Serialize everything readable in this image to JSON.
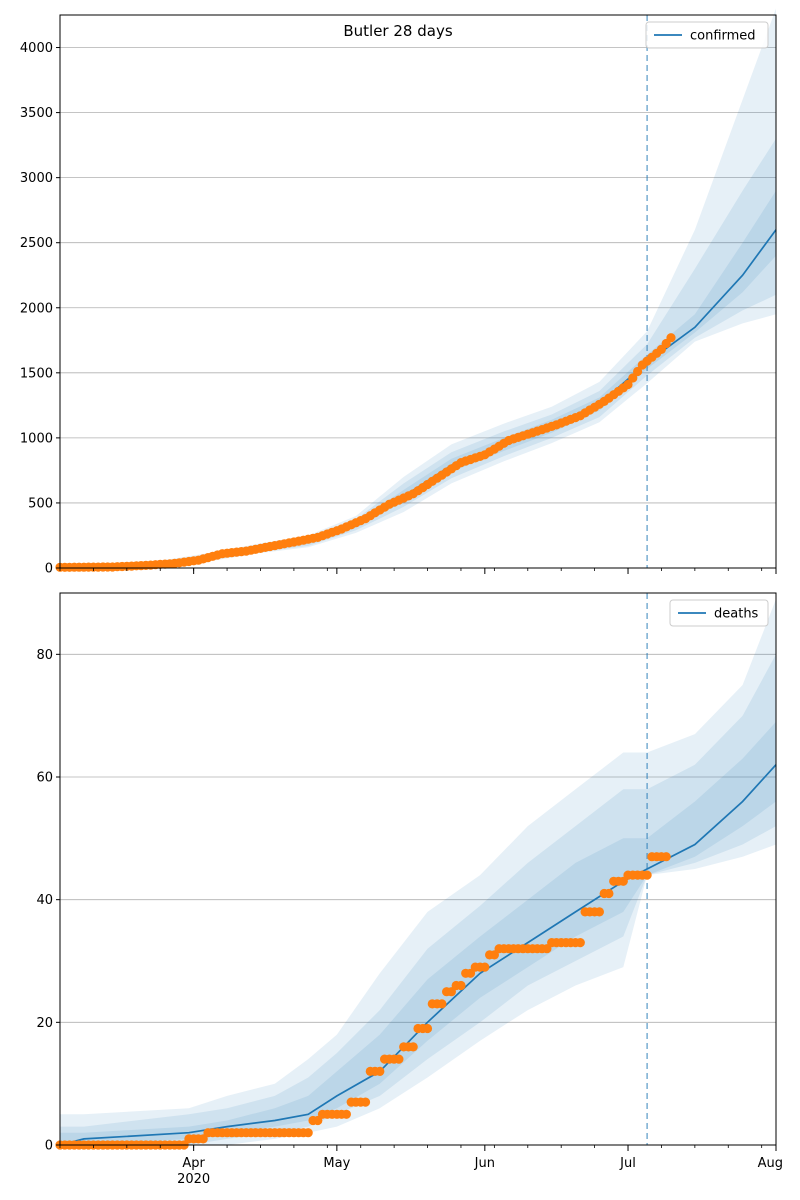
{
  "chart_data": [
    {
      "type": "line",
      "title": "Butler 28 days",
      "xlabel": "",
      "ylabel": "",
      "ylim": [
        0,
        4250
      ],
      "xlim": [
        "2020-03-04",
        "2020-08-01"
      ],
      "yticks": [
        0,
        500,
        1000,
        1500,
        2000,
        2500,
        3000,
        3500,
        4000
      ],
      "grid": "horizontal",
      "legend_position": "top-right",
      "legend": [
        "confirmed"
      ],
      "forecast_start": "2020-07-05",
      "series": [
        {
          "name": "confirmed",
          "kind": "model-median",
          "color": "#1f77b4",
          "x": [
            "2020-03-04",
            "2020-03-15",
            "2020-03-25",
            "2020-04-05",
            "2020-04-15",
            "2020-04-25",
            "2020-05-05",
            "2020-05-15",
            "2020-05-25",
            "2020-06-05",
            "2020-06-15",
            "2020-06-25",
            "2020-07-05",
            "2020-07-15",
            "2020-07-25",
            "2020-08-01"
          ],
          "y": [
            5,
            10,
            30,
            85,
            150,
            200,
            330,
            550,
            790,
            950,
            1090,
            1260,
            1580,
            1850,
            2250,
            2600
          ],
          "bands": [
            {
              "lower": [
                0,
                0,
                10,
                55,
                115,
                160,
                270,
                430,
                650,
                820,
                960,
                1120,
                1420,
                1740,
                1880,
                1950
              ],
              "upper": [
                20,
                25,
                55,
                120,
                190,
                250,
                400,
                700,
                950,
                1110,
                1240,
                1430,
                1820,
                2600,
                3600,
                4300
              ]
            },
            {
              "lower": [
                0,
                2,
                15,
                65,
                125,
                170,
                290,
                470,
                690,
                860,
                1000,
                1160,
                1480,
                1770,
                1980,
                2100
              ],
              "upper": [
                15,
                20,
                45,
                105,
                175,
                235,
                375,
                650,
                890,
                1050,
                1180,
                1360,
                1720,
                2300,
                2900,
                3300
              ]
            },
            {
              "lower": [
                2,
                5,
                22,
                75,
                138,
                185,
                310,
                510,
                740,
                900,
                1040,
                1210,
                1530,
                1810,
                2120,
                2400
              ],
              "upper": [
                10,
                15,
                38,
                95,
                162,
                215,
                350,
                600,
                840,
                1000,
                1140,
                1310,
                1640,
                1950,
                2500,
                2900
              ]
            }
          ]
        },
        {
          "name": "",
          "kind": "observed",
          "color": "#ff7f0e",
          "x": [
            "2020-03-04",
            "2020-03-15",
            "2020-03-22",
            "2020-03-28",
            "2020-04-02",
            "2020-04-07",
            "2020-04-12",
            "2020-04-17",
            "2020-04-22",
            "2020-04-27",
            "2020-05-02",
            "2020-05-07",
            "2020-05-12",
            "2020-05-17",
            "2020-05-22",
            "2020-05-27",
            "2020-06-01",
            "2020-06-06",
            "2020-06-11",
            "2020-06-16",
            "2020-06-21",
            "2020-06-26",
            "2020-07-01",
            "2020-07-04",
            "2020-07-08",
            "2020-07-10"
          ],
          "y": [
            5,
            8,
            20,
            35,
            60,
            110,
            130,
            165,
            200,
            235,
            300,
            380,
            490,
            570,
            690,
            810,
            870,
            980,
            1040,
            1100,
            1170,
            1280,
            1410,
            1560,
            1680,
            1770
          ]
        }
      ]
    },
    {
      "type": "line",
      "title": "",
      "xlabel": "",
      "ylabel": "",
      "ylim": [
        0,
        90
      ],
      "xlim": [
        "2020-03-04",
        "2020-08-01"
      ],
      "yticks": [
        0,
        20,
        40,
        60,
        80
      ],
      "xticks": [
        "Apr",
        "May",
        "Jun",
        "Jul",
        "Aug"
      ],
      "xtick_dates": [
        "2020-04-01",
        "2020-05-01",
        "2020-06-01",
        "2020-07-01",
        "2020-08-01"
      ],
      "x_year_label": "2020",
      "grid": "horizontal",
      "legend_position": "top-right",
      "legend": [
        "deaths"
      ],
      "forecast_start": "2020-07-05",
      "series": [
        {
          "name": "deaths",
          "kind": "model-median",
          "color": "#1f77b4",
          "x": [
            "2020-03-04",
            "2020-03-09",
            "2020-03-31",
            "2020-04-08",
            "2020-04-18",
            "2020-04-25",
            "2020-05-01",
            "2020-05-10",
            "2020-05-20",
            "2020-05-31",
            "2020-06-10",
            "2020-06-20",
            "2020-06-30",
            "2020-07-05",
            "2020-07-15",
            "2020-07-25",
            "2020-08-01"
          ],
          "y": [
            0,
            1,
            2,
            3,
            4,
            5,
            8,
            12,
            20,
            28,
            33,
            38,
            43,
            45,
            49,
            56,
            62
          ],
          "bands": [
            {
              "lower": [
                0,
                0,
                0,
                0,
                1,
                2,
                3,
                6,
                11,
                17,
                22,
                26,
                29,
                44,
                45,
                47,
                49
              ],
              "upper": [
                5,
                5,
                6,
                8,
                10,
                14,
                18,
                28,
                38,
                44,
                52,
                58,
                64,
                64,
                67,
                75,
                89
              ]
            },
            {
              "lower": [
                0,
                0,
                0,
                1,
                2,
                3,
                5,
                8,
                14,
                20,
                26,
                30,
                34,
                44,
                46,
                49,
                52
              ],
              "upper": [
                3,
                3,
                5,
                6,
                8,
                11,
                15,
                22,
                32,
                39,
                46,
                52,
                58,
                58,
                62,
                70,
                80
              ]
            },
            {
              "lower": [
                0,
                0,
                1,
                2,
                3,
                4,
                6,
                10,
                17,
                24,
                29,
                34,
                38,
                44,
                47,
                52,
                56
              ],
              "upper": [
                2,
                2,
                3,
                4,
                6,
                8,
                12,
                18,
                27,
                34,
                40,
                46,
                50,
                50,
                56,
                63,
                69
              ]
            }
          ]
        },
        {
          "name": "",
          "kind": "observed",
          "color": "#ff7f0e",
          "x": [
            "2020-03-04",
            "2020-03-31",
            "2020-04-04",
            "2020-04-26",
            "2020-04-28",
            "2020-05-04",
            "2020-05-08",
            "2020-05-11",
            "2020-05-15",
            "2020-05-18",
            "2020-05-21",
            "2020-05-24",
            "2020-05-26",
            "2020-05-28",
            "2020-05-30",
            "2020-06-02",
            "2020-06-04",
            "2020-06-15",
            "2020-06-22",
            "2020-06-26",
            "2020-06-28",
            "2020-07-01",
            "2020-07-05",
            "2020-07-06",
            "2020-07-09"
          ],
          "y": [
            0,
            1,
            2,
            4,
            5,
            7,
            12,
            14,
            16,
            19,
            23,
            25,
            26,
            28,
            29,
            31,
            32,
            33,
            38,
            41,
            43,
            44,
            44,
            47,
            47
          ]
        }
      ]
    }
  ]
}
